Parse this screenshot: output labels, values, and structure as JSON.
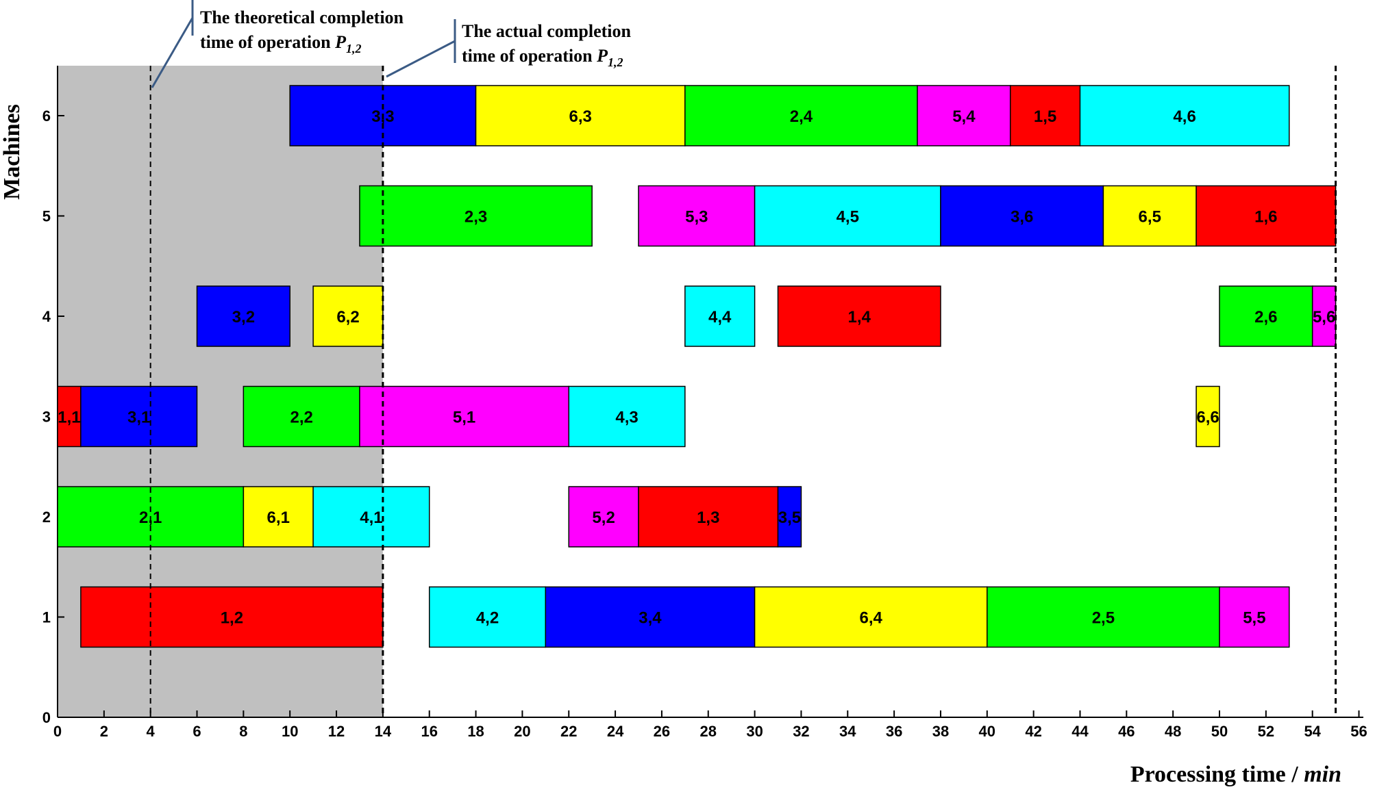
{
  "chart_data": {
    "type": "gantt",
    "xlabel": {
      "main": "Processing time / ",
      "unit": "min"
    },
    "ylabel": "Machines",
    "xlim": [
      0,
      56
    ],
    "ylim": [
      0,
      6.5
    ],
    "xticks": [
      0,
      2,
      4,
      6,
      8,
      10,
      12,
      14,
      16,
      18,
      20,
      22,
      24,
      26,
      28,
      30,
      32,
      34,
      36,
      38,
      40,
      42,
      44,
      46,
      48,
      50,
      52,
      54,
      56
    ],
    "yticks": [
      0,
      1,
      2,
      3,
      4,
      5,
      6
    ],
    "job_colors": {
      "1": "#ff0000",
      "2": "#00ff00",
      "3": "#0000ff",
      "4": "#00ffff",
      "5": "#ff00ff",
      "6": "#ffff00"
    },
    "shaded_region": {
      "start": 0,
      "end": 14,
      "color": "#c0c0c0"
    },
    "reference_lines": [
      {
        "x": 4,
        "style": "dashed"
      },
      {
        "x": 14,
        "style": "dashed"
      },
      {
        "x": 55,
        "style": "dashed"
      }
    ],
    "annotations": [
      {
        "line1": "The theoretical completion",
        "line2_prefix": "time of operation ",
        "symbol": "P",
        "subscript": "1,2",
        "points_to_x": 4
      },
      {
        "line1": "The actual completion",
        "line2_prefix": "time of operation ",
        "symbol": "P",
        "subscript": "1,2",
        "points_to_x": 14
      }
    ],
    "operations": [
      {
        "machine": 1,
        "job": 1,
        "label": "1,2",
        "start": 1,
        "end": 14
      },
      {
        "machine": 1,
        "job": 4,
        "label": "4,2",
        "start": 16,
        "end": 21
      },
      {
        "machine": 1,
        "job": 3,
        "label": "3,4",
        "start": 21,
        "end": 30
      },
      {
        "machine": 1,
        "job": 6,
        "label": "6,4",
        "start": 30,
        "end": 40
      },
      {
        "machine": 1,
        "job": 2,
        "label": "2,5",
        "start": 40,
        "end": 50
      },
      {
        "machine": 1,
        "job": 5,
        "label": "5,5",
        "start": 50,
        "end": 53
      },
      {
        "machine": 2,
        "job": 2,
        "label": "2,1",
        "start": 0,
        "end": 8
      },
      {
        "machine": 2,
        "job": 6,
        "label": "6,1",
        "start": 8,
        "end": 11
      },
      {
        "machine": 2,
        "job": 4,
        "label": "4,1",
        "start": 11,
        "end": 16
      },
      {
        "machine": 2,
        "job": 5,
        "label": "5,2",
        "start": 22,
        "end": 25
      },
      {
        "machine": 2,
        "job": 1,
        "label": "1,3",
        "start": 25,
        "end": 31
      },
      {
        "machine": 2,
        "job": 3,
        "label": "3,5",
        "start": 31,
        "end": 32
      },
      {
        "machine": 3,
        "job": 1,
        "label": "1,1",
        "start": 0,
        "end": 1
      },
      {
        "machine": 3,
        "job": 3,
        "label": "3,1",
        "start": 1,
        "end": 6
      },
      {
        "machine": 3,
        "job": 2,
        "label": "2,2",
        "start": 8,
        "end": 13
      },
      {
        "machine": 3,
        "job": 5,
        "label": "5,1",
        "start": 13,
        "end": 22
      },
      {
        "machine": 3,
        "job": 4,
        "label": "4,3",
        "start": 22,
        "end": 27
      },
      {
        "machine": 3,
        "job": 6,
        "label": "6,6",
        "start": 49,
        "end": 50
      },
      {
        "machine": 4,
        "job": 3,
        "label": "3,2",
        "start": 6,
        "end": 10
      },
      {
        "machine": 4,
        "job": 6,
        "label": "6,2",
        "start": 11,
        "end": 14
      },
      {
        "machine": 4,
        "job": 4,
        "label": "4,4",
        "start": 27,
        "end": 30
      },
      {
        "machine": 4,
        "job": 1,
        "label": "1,4",
        "start": 31,
        "end": 38
      },
      {
        "machine": 4,
        "job": 2,
        "label": "2,6",
        "start": 50,
        "end": 54
      },
      {
        "machine": 4,
        "job": 5,
        "label": "5,6",
        "start": 54,
        "end": 55
      },
      {
        "machine": 5,
        "job": 2,
        "label": "2,3",
        "start": 13,
        "end": 23
      },
      {
        "machine": 5,
        "job": 5,
        "label": "5,3",
        "start": 25,
        "end": 30
      },
      {
        "machine": 5,
        "job": 4,
        "label": "4,5",
        "start": 30,
        "end": 38
      },
      {
        "machine": 5,
        "job": 3,
        "label": "3,6",
        "start": 38,
        "end": 45
      },
      {
        "machine": 5,
        "job": 6,
        "label": "6,5",
        "start": 45,
        "end": 49
      },
      {
        "machine": 5,
        "job": 1,
        "label": "1,6",
        "start": 49,
        "end": 55
      },
      {
        "machine": 6,
        "job": 3,
        "label": "3,3",
        "start": 10,
        "end": 18
      },
      {
        "machine": 6,
        "job": 6,
        "label": "6,3",
        "start": 18,
        "end": 27
      },
      {
        "machine": 6,
        "job": 2,
        "label": "2,4",
        "start": 27,
        "end": 37
      },
      {
        "machine": 6,
        "job": 5,
        "label": "5,4",
        "start": 37,
        "end": 41
      },
      {
        "machine": 6,
        "job": 1,
        "label": "1,5",
        "start": 41,
        "end": 44
      },
      {
        "machine": 6,
        "job": 4,
        "label": "4,6",
        "start": 44,
        "end": 53
      }
    ]
  }
}
